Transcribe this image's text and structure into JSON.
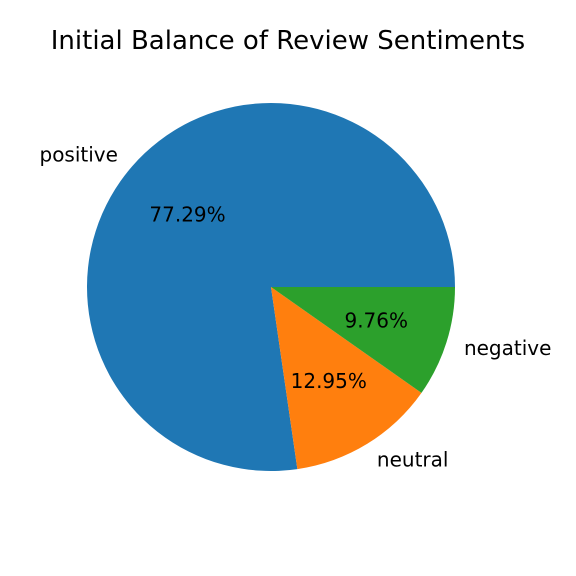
{
  "chart_data": {
    "type": "pie",
    "title": "Initial Balance of Review Sentiments",
    "slices": [
      {
        "label": "positive",
        "value": 77.29,
        "pct_label": "77.29%",
        "color": "#1f77b4"
      },
      {
        "label": "neutral",
        "value": 12.95,
        "pct_label": "12.95%",
        "color": "#ff7f0e"
      },
      {
        "label": "negative",
        "value": 9.76,
        "pct_label": "9.76%",
        "color": "#2ca02c"
      }
    ],
    "start_angle_deg": 0,
    "direction": "counterclockwise"
  }
}
